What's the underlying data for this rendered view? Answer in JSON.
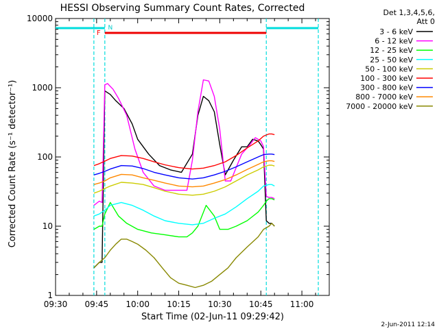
{
  "chart_data": {
    "type": "line",
    "title": "HESSI Observing Summary Count Rates, Corrected",
    "xlabel": "Start Time (02-Jun-11 09:29:42)",
    "ylabel": "Corrected Count Rate (s⁻¹ detector⁻¹)",
    "y_scale": "log",
    "ylim": [
      1,
      10000
    ],
    "xlim": [
      "09:30",
      "11:10"
    ],
    "x_ticks": [
      "09:30",
      "09:45",
      "10:00",
      "10:15",
      "10:30",
      "10:45",
      "11:00"
    ],
    "y_ticks": [
      "1",
      "10",
      "100",
      "1000",
      "10000"
    ],
    "legend_title": [
      "Det 1,3,4,5,6,",
      "Att 0"
    ],
    "legend_position": "top-right, outside plot",
    "timestamp": "2-Jun-2011 12:14",
    "flag_labels": {
      "flare": "F",
      "night": "N"
    },
    "flags": {
      "flare_interval": [
        "09:48",
        "10:47"
      ],
      "daylight_intervals": [
        [
          "09:30",
          "09:48"
        ],
        [
          "10:47",
          "11:06"
        ]
      ],
      "event_lines": [
        "09:44",
        "09:48",
        "10:47",
        "11:06"
      ]
    },
    "series": [
      {
        "name": "3 - 6 keV",
        "color": "#000000",
        "x": [
          "09:44",
          "09:46",
          "09:47",
          "09:48",
          "09:50",
          "09:52",
          "09:55",
          "09:58",
          "10:00",
          "10:04",
          "10:08",
          "10:12",
          "10:16",
          "10:20",
          "10:22",
          "10:24",
          "10:26",
          "10:28",
          "10:30",
          "10:32",
          "10:35",
          "10:38",
          "10:40",
          "10:42",
          "10:44",
          "10:45",
          "10:46",
          "10:47",
          "10:48",
          "10:49",
          "10:50"
        ],
        "y": [
          2.5,
          3,
          3,
          900,
          800,
          650,
          500,
          300,
          180,
          110,
          75,
          65,
          60,
          110,
          400,
          750,
          650,
          450,
          150,
          55,
          90,
          140,
          140,
          180,
          170,
          150,
          130,
          12,
          11,
          11,
          10
        ]
      },
      {
        "name": "6 - 12 keV",
        "color": "#ff00ff",
        "x": [
          "09:44",
          "09:46",
          "09:47",
          "09:48",
          "09:49",
          "09:51",
          "09:53",
          "09:56",
          "09:59",
          "10:02",
          "10:06",
          "10:10",
          "10:14",
          "10:18",
          "10:20",
          "10:22",
          "10:24",
          "10:26",
          "10:28",
          "10:30",
          "10:32",
          "10:34",
          "10:38",
          "10:41",
          "10:43",
          "10:45",
          "10:46",
          "10:47",
          "10:48",
          "10:49",
          "10:50"
        ],
        "y": [
          20,
          23,
          22,
          1100,
          1150,
          950,
          700,
          400,
          130,
          60,
          38,
          33,
          33,
          33,
          90,
          450,
          1300,
          1250,
          750,
          250,
          45,
          45,
          110,
          150,
          190,
          170,
          140,
          27,
          26,
          26,
          25
        ]
      },
      {
        "name": "12 - 25 keV",
        "color": "#00ff00",
        "x": [
          "09:44",
          "09:46",
          "09:47",
          "09:48",
          "09:50",
          "09:53",
          "09:56",
          "10:00",
          "10:05",
          "10:10",
          "10:15",
          "10:18",
          "10:20",
          "10:22",
          "10:25",
          "10:28",
          "10:30",
          "10:33",
          "10:36",
          "10:40",
          "10:44",
          "10:46",
          "10:47",
          "10:48",
          "10:49",
          "10:50"
        ],
        "y": [
          9,
          10,
          10,
          15,
          22,
          14,
          11,
          9,
          8,
          7.5,
          7,
          7,
          8,
          10,
          20,
          14,
          9,
          9,
          10,
          12,
          16,
          20,
          23,
          25,
          25,
          24
        ]
      },
      {
        "name": "25 - 50 keV",
        "color": "#00ffff",
        "x": [
          "09:44",
          "09:46",
          "09:48",
          "09:50",
          "09:54",
          "09:58",
          "10:02",
          "10:06",
          "10:10",
          "10:15",
          "10:20",
          "10:24",
          "10:28",
          "10:32",
          "10:36",
          "10:40",
          "10:44",
          "10:46",
          "10:48",
          "10:49",
          "10:50"
        ],
        "y": [
          14,
          15,
          17,
          20,
          22,
          20,
          17,
          14,
          12,
          11,
          10.5,
          11,
          13,
          15,
          19,
          25,
          32,
          38,
          40,
          40,
          38
        ]
      },
      {
        "name": "50 - 100 keV",
        "color": "#cccc00",
        "x": [
          "09:44",
          "09:46",
          "09:48",
          "09:50",
          "09:54",
          "09:58",
          "10:02",
          "10:06",
          "10:10",
          "10:15",
          "10:20",
          "10:24",
          "10:28",
          "10:32",
          "10:36",
          "10:40",
          "10:44",
          "10:46",
          "10:48",
          "10:49",
          "10:50"
        ],
        "y": [
          30,
          32,
          35,
          38,
          43,
          42,
          40,
          36,
          32,
          29,
          28,
          29,
          32,
          37,
          45,
          55,
          65,
          72,
          76,
          76,
          74
        ]
      },
      {
        "name": "100 - 300 keV",
        "color": "#ff0000",
        "x": [
          "09:44",
          "09:46",
          "09:48",
          "09:50",
          "09:54",
          "09:58",
          "10:02",
          "10:06",
          "10:10",
          "10:15",
          "10:20",
          "10:24",
          "10:28",
          "10:32",
          "10:36",
          "10:40",
          "10:44",
          "10:46",
          "10:48",
          "10:49",
          "10:50"
        ],
        "y": [
          75,
          80,
          87,
          95,
          105,
          103,
          95,
          85,
          77,
          70,
          67,
          69,
          75,
          85,
          105,
          135,
          170,
          200,
          215,
          215,
          210
        ]
      },
      {
        "name": "300 - 800 keV",
        "color": "#0000ff",
        "x": [
          "09:44",
          "09:46",
          "09:48",
          "09:50",
          "09:54",
          "09:58",
          "10:02",
          "10:06",
          "10:10",
          "10:15",
          "10:20",
          "10:24",
          "10:28",
          "10:32",
          "10:36",
          "10:40",
          "10:44",
          "10:46",
          "10:48",
          "10:49",
          "10:50"
        ],
        "y": [
          55,
          58,
          62,
          67,
          75,
          74,
          68,
          60,
          55,
          50,
          48,
          50,
          55,
          62,
          72,
          85,
          100,
          108,
          110,
          110,
          108
        ]
      },
      {
        "name": "800 - 7000 keV",
        "color": "#ff8800",
        "x": [
          "09:44",
          "09:46",
          "09:48",
          "09:50",
          "09:54",
          "09:58",
          "10:02",
          "10:06",
          "10:10",
          "10:15",
          "10:20",
          "10:24",
          "10:28",
          "10:32",
          "10:36",
          "10:40",
          "10:44",
          "10:46",
          "10:48",
          "10:49",
          "10:50"
        ],
        "y": [
          40,
          42,
          45,
          50,
          56,
          55,
          50,
          46,
          42,
          38,
          37,
          38,
          42,
          47,
          55,
          66,
          78,
          85,
          88,
          88,
          86
        ]
      },
      {
        "name": "7000 - 20000 keV",
        "color": "#888800",
        "x": [
          "09:44",
          "09:46",
          "09:48",
          "09:50",
          "09:52",
          "09:54",
          "09:56",
          "09:58",
          "10:00",
          "10:03",
          "10:06",
          "10:09",
          "10:12",
          "10:15",
          "10:18",
          "10:21",
          "10:24",
          "10:27",
          "10:30",
          "10:33",
          "10:36",
          "10:40",
          "10:44",
          "10:46",
          "10:48",
          "10:49",
          "10:50"
        ],
        "y": [
          2.5,
          3,
          3.5,
          4.5,
          5.5,
          6.5,
          6.5,
          6,
          5.5,
          4.5,
          3.5,
          2.5,
          1.8,
          1.5,
          1.4,
          1.3,
          1.4,
          1.6,
          2,
          2.5,
          3.5,
          5,
          7,
          9,
          10,
          11,
          10
        ]
      }
    ]
  }
}
